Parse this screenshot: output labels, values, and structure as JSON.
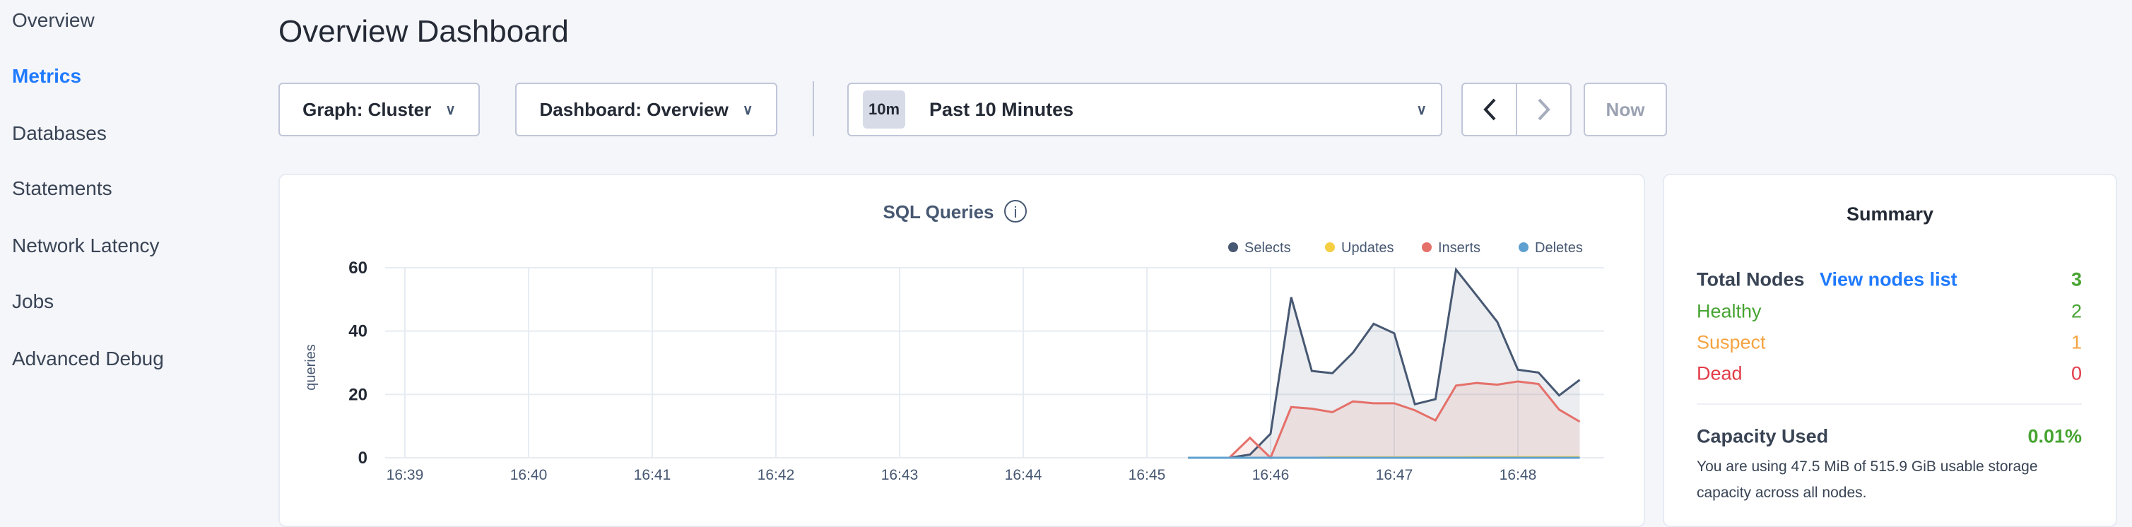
{
  "sidebar": {
    "items": [
      {
        "label": "Overview",
        "active": false
      },
      {
        "label": "Metrics",
        "active": true
      },
      {
        "label": "Databases",
        "active": false
      },
      {
        "label": "Statements",
        "active": false
      },
      {
        "label": "Network Latency",
        "active": false
      },
      {
        "label": "Jobs",
        "active": false
      },
      {
        "label": "Advanced Debug",
        "active": false
      }
    ]
  },
  "header": {
    "title": "Overview Dashboard"
  },
  "toolbar": {
    "graph_label": "Graph: Cluster",
    "dashboard_label": "Dashboard: Overview",
    "time_badge": "10m",
    "time_label": "Past 10 Minutes",
    "now_label": "Now"
  },
  "chart_data": {
    "type": "area",
    "title": "SQL Queries",
    "ylabel": "queries",
    "xlabel": "",
    "ylim": [
      0,
      60
    ],
    "yticks": [
      0,
      20,
      40,
      60
    ],
    "xticks": [
      "16:39",
      "16:40",
      "16:41",
      "16:42",
      "16:43",
      "16:44",
      "16:45",
      "16:46",
      "16:47",
      "16:48"
    ],
    "grid": true,
    "legend_placement": "top-right",
    "x": [
      "16:45:20",
      "16:45:30",
      "16:45:40",
      "16:45:50",
      "16:46:00",
      "16:46:10",
      "16:46:20",
      "16:46:30",
      "16:46:40",
      "16:46:50",
      "16:47:00",
      "16:47:10",
      "16:47:20",
      "16:47:30",
      "16:47:40",
      "16:47:50",
      "16:48:00",
      "16:48:10",
      "16:48:20",
      "16:48:30"
    ],
    "series": [
      {
        "name": "Selects",
        "color": "#475872",
        "values": [
          0,
          0,
          0,
          1,
          7.6,
          50.7,
          27.4,
          26.7,
          33.2,
          42.3,
          39.3,
          16.9,
          18.5,
          59.4,
          51.2,
          42.9,
          27.8,
          26.9,
          19.7,
          24.6
        ]
      },
      {
        "name": "Updates",
        "color": "#f5ce42",
        "values": [
          0,
          0,
          0,
          0,
          0,
          0,
          0,
          0.1,
          0.1,
          0.1,
          0.1,
          0.1,
          0.1,
          0.1,
          0.2,
          0.2,
          0.2,
          0.2,
          0.2,
          0.2
        ]
      },
      {
        "name": "Inserts",
        "color": "#e5706a",
        "values": [
          0,
          0,
          0,
          6.3,
          0,
          16,
          15.5,
          14.4,
          17.8,
          17.2,
          17.2,
          15,
          11.8,
          22.8,
          23.6,
          23.1,
          24.1,
          23.3,
          15.2,
          11.4
        ]
      },
      {
        "name": "Deletes",
        "color": "#5ea0cf",
        "values": [
          0,
          0,
          0,
          0,
          0,
          0,
          0,
          0,
          0,
          0,
          0,
          0,
          0,
          0,
          0,
          0,
          0,
          0,
          0,
          0
        ]
      }
    ]
  },
  "summary": {
    "title": "Summary",
    "total_nodes_label": "Total Nodes",
    "view_nodes_link": "View nodes list",
    "total_nodes": "3",
    "healthy_label": "Healthy",
    "healthy": "2",
    "suspect_label": "Suspect",
    "suspect": "1",
    "dead_label": "Dead",
    "dead": "0",
    "capacity_label": "Capacity Used",
    "capacity_value": "0.01%",
    "capacity_text": "You are using 47.5 MiB of 515.9 GiB usable storage capacity across all nodes.",
    "colors": {
      "healthy": "#47a432",
      "suspect": "#f5a341",
      "dead": "#e23b48",
      "link": "#1f7aff"
    }
  }
}
